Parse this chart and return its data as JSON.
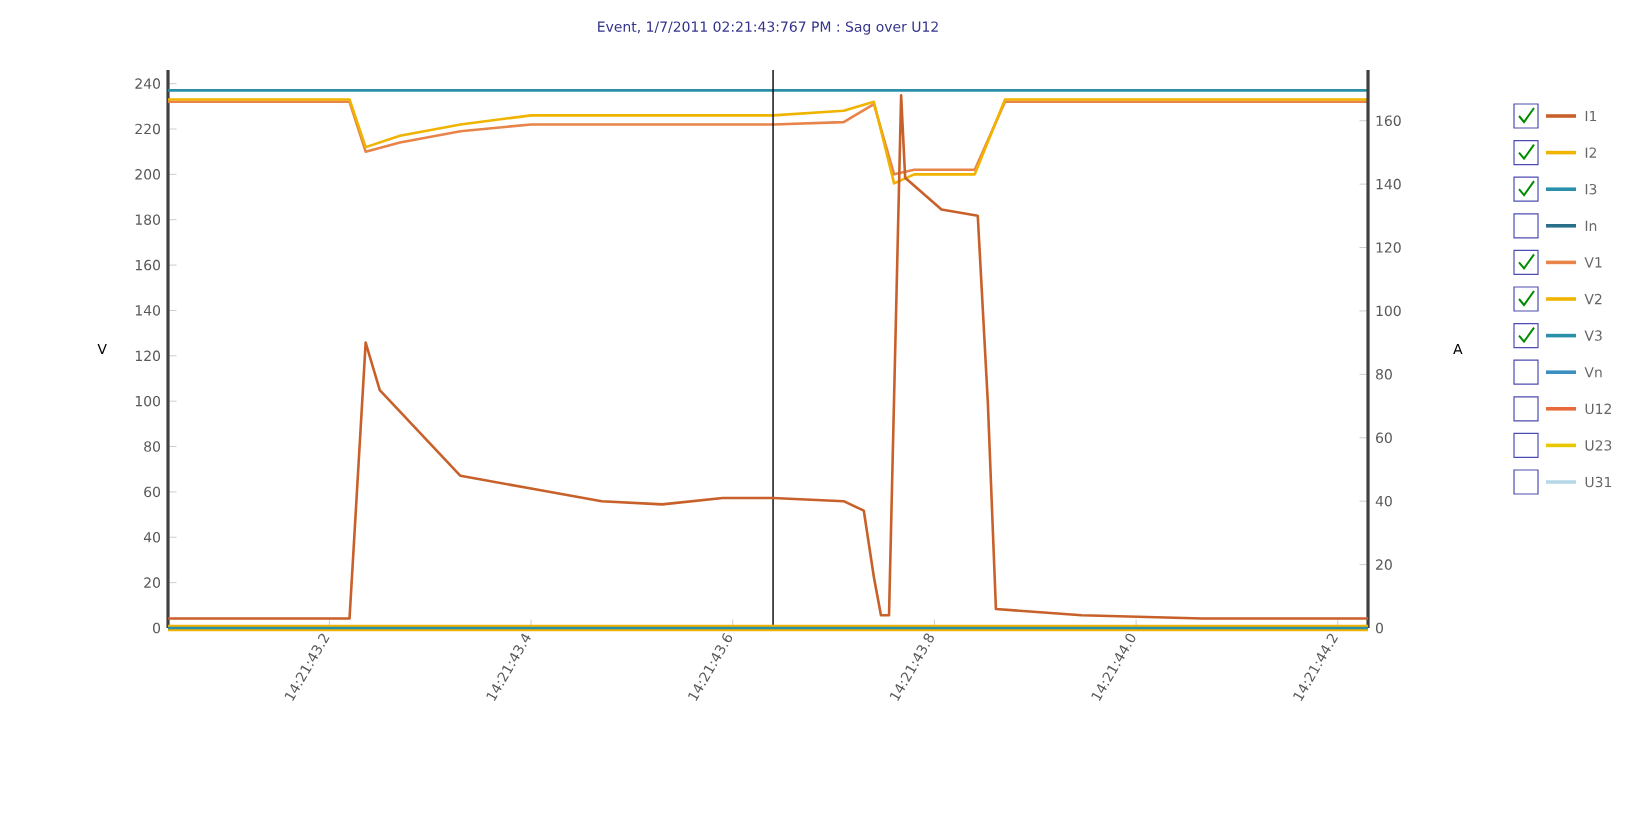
{
  "chart_data": {
    "type": "line",
    "title": "Event, 1/7/2011 02:21:43:767 PM : Sag over U12",
    "ylabel": "V",
    "y2label": "A",
    "xlim": [
      "2011-01-07T14:21:43.040",
      "2011-01-07T14:21:44.230"
    ],
    "xticks": [
      {
        "value": "2011-01-07T14:21:43.200",
        "label": "14:21:43.2"
      },
      {
        "value": "2011-01-07T14:21:43.400",
        "label": "14:21:43.4"
      },
      {
        "value": "2011-01-07T14:21:43.600",
        "label": "14:21:43.6"
      },
      {
        "value": "2011-01-07T14:21:43.800",
        "label": "14:21:43.8"
      },
      {
        "value": "2011-01-07T14:21:44.000",
        "label": "14:21:44.0"
      },
      {
        "value": "2011-01-07T14:21:44.200",
        "label": "14:21:44.2"
      }
    ],
    "ylim": [
      0,
      246
    ],
    "yticks": [
      0,
      20,
      40,
      60,
      80,
      100,
      120,
      140,
      160,
      180,
      200,
      220,
      240
    ],
    "y2lim": [
      0,
      176
    ],
    "y2ticks": [
      0,
      20,
      40,
      60,
      80,
      100,
      120,
      140,
      160
    ],
    "grid": false,
    "legend": "right",
    "marker": "none",
    "line_style": "solid",
    "ref_lines": [
      {
        "axis": "x",
        "value": "2011-01-07T14:21:43.640",
        "color": "#000000"
      }
    ],
    "series": [
      {
        "name": "I1",
        "color": "#c8602a",
        "axis": "y2",
        "x": [
          "2011-01-07T14:21:43.040",
          "2011-01-07T14:21:43.220",
          "2011-01-07T14:21:43.236",
          "2011-01-07T14:21:43.250",
          "2011-01-07T14:21:43.330",
          "2011-01-07T14:21:43.400",
          "2011-01-07T14:21:43.470",
          "2011-01-07T14:21:43.530",
          "2011-01-07T14:21:43.590",
          "2011-01-07T14:21:43.640",
          "2011-01-07T14:21:43.710",
          "2011-01-07T14:21:43.730",
          "2011-01-07T14:21:43.740",
          "2011-01-07T14:21:43.747",
          "2011-01-07T14:21:43.755",
          "2011-01-07T14:21:43.767",
          "2011-01-07T14:21:43.771",
          "2011-01-07T14:21:43.807",
          "2011-01-07T14:21:43.843",
          "2011-01-07T14:21:43.853",
          "2011-01-07T14:21:43.861",
          "2011-01-07T14:21:43.946",
          "2011-01-07T14:21:44.066",
          "2011-01-07T14:21:44.230"
        ],
        "values": [
          3,
          3,
          90,
          75,
          48,
          44,
          40,
          39,
          41,
          41,
          40,
          37,
          16,
          4,
          4,
          168,
          142,
          132,
          130,
          71,
          6,
          4,
          3,
          3
        ]
      },
      {
        "name": "I2",
        "color": "#f0b400",
        "axis": "y2",
        "x": [
          "2011-01-07T14:21:43.040",
          "2011-01-07T14:21:44.230"
        ],
        "values": [
          0,
          0
        ]
      },
      {
        "name": "I3",
        "color": "#2a8fa8",
        "axis": "y2",
        "x": [
          "2011-01-07T14:21:43.040",
          "2011-01-07T14:21:44.230"
        ],
        "values": [
          0,
          0
        ]
      },
      {
        "name": "In",
        "color": "#2a6f8a",
        "axis": "y2"
      },
      {
        "name": "V1",
        "color": "#e8844a",
        "x": [
          "2011-01-07T14:21:43.040",
          "2011-01-07T14:21:43.220",
          "2011-01-07T14:21:43.236",
          "2011-01-07T14:21:43.270",
          "2011-01-07T14:21:43.330",
          "2011-01-07T14:21:43.400",
          "2011-01-07T14:21:43.640",
          "2011-01-07T14:21:43.710",
          "2011-01-07T14:21:43.740",
          "2011-01-07T14:21:43.760",
          "2011-01-07T14:21:43.780",
          "2011-01-07T14:21:43.840",
          "2011-01-07T14:21:43.870",
          "2011-01-07T14:21:44.230"
        ],
        "values": [
          232,
          232,
          210,
          214,
          219,
          222,
          222,
          223,
          231,
          200,
          202,
          202,
          232,
          232
        ]
      },
      {
        "name": "V2",
        "color": "#f0b400",
        "x": [
          "2011-01-07T14:21:43.040",
          "2011-01-07T14:21:43.220",
          "2011-01-07T14:21:43.236",
          "2011-01-07T14:21:43.270",
          "2011-01-07T14:21:43.330",
          "2011-01-07T14:21:43.400",
          "2011-01-07T14:21:43.640",
          "2011-01-07T14:21:43.710",
          "2011-01-07T14:21:43.740",
          "2011-01-07T14:21:43.760",
          "2011-01-07T14:21:43.780",
          "2011-01-07T14:21:43.840",
          "2011-01-07T14:21:43.870",
          "2011-01-07T14:21:44.230"
        ],
        "values": [
          233,
          233,
          212,
          217,
          222,
          226,
          226,
          228,
          232,
          196,
          200,
          200,
          233,
          233
        ]
      },
      {
        "name": "V3",
        "color": "#2a8fa8",
        "x": [
          "2011-01-07T14:21:43.040",
          "2011-01-07T14:21:44.230"
        ],
        "values": [
          237,
          237
        ]
      },
      {
        "name": "Vn",
        "color": "#3a8fc0"
      },
      {
        "name": "U12",
        "color": "#e86a3a"
      },
      {
        "name": "U23",
        "color": "#e8c800"
      },
      {
        "name": "U31",
        "color": "#b8d8e8"
      }
    ]
  }
}
